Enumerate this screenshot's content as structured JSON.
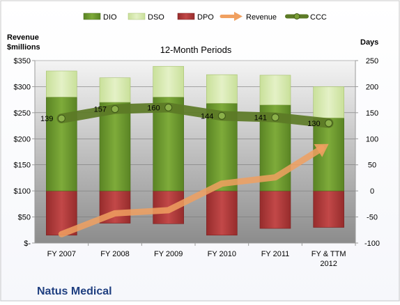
{
  "chart_data": {
    "type": "bar",
    "title": "12-Month Periods",
    "company": "Natus Medical",
    "left_axis_label_line1": "Revenue",
    "left_axis_label_line2": "$millions",
    "right_axis_label": "Days",
    "categories": [
      [
        "FY 2007"
      ],
      [
        "FY 2008"
      ],
      [
        "FY 2009"
      ],
      [
        "FY 2010"
      ],
      [
        "FY 2011"
      ],
      [
        "FY & TTM",
        "2012"
      ]
    ],
    "left_ticks": [
      "$-",
      "$50",
      "$100",
      "$150",
      "$200",
      "$250",
      "$300",
      "$350"
    ],
    "right_ticks": [
      "-100",
      "-50",
      "0",
      "50",
      "100",
      "150",
      "200",
      "250"
    ],
    "ylim_left": [
      0,
      350
    ],
    "ylim_right": [
      -100,
      250
    ],
    "series": [
      {
        "name": "DIO",
        "kind": "stacked_bar",
        "color": "#6f9a2f",
        "values": [
          180,
          170,
          180,
          168,
          165,
          140
        ]
      },
      {
        "name": "DSO",
        "kind": "stacked_bar",
        "color": "#d5e8a8",
        "values": [
          50,
          47,
          59,
          55,
          57,
          60
        ]
      },
      {
        "name": "DPO",
        "kind": "stacked_bar_negative",
        "color": "#b53a3a",
        "values": [
          -85,
          -62,
          -63,
          -85,
          -72,
          -70
        ]
      },
      {
        "name": "Revenue",
        "kind": "arrow_line",
        "axis": "left",
        "color": "#f0a060",
        "values": [
          17,
          57,
          63,
          114,
          126,
          190
        ]
      },
      {
        "name": "CCC",
        "kind": "line",
        "axis": "right",
        "color": "#5c7a26",
        "values": [
          139,
          157,
          160,
          144,
          141,
          130
        ],
        "labels": [
          "139",
          "157",
          "160",
          "144",
          "141",
          "130"
        ]
      }
    ],
    "legend_position": "top",
    "grid": true
  }
}
